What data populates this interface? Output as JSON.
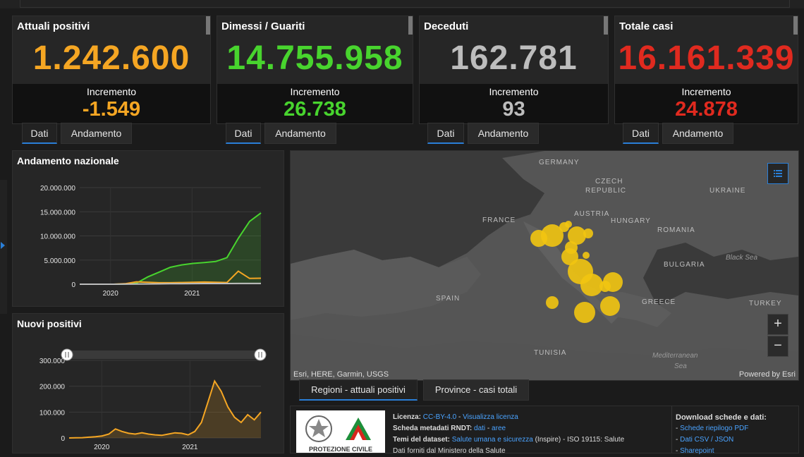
{
  "cards": [
    {
      "title": "Attuali positivi",
      "value": "1.242.600",
      "inc_label": "Incremento",
      "inc_value": "-1.549",
      "color": "#f5a623"
    },
    {
      "title": "Dimessi / Guariti",
      "value": "14.755.958",
      "inc_label": "Incremento",
      "inc_value": "26.738",
      "color": "#48d42e"
    },
    {
      "title": "Deceduti",
      "value": "162.781",
      "inc_label": "Incremento",
      "inc_value": "93",
      "color": "#bdbdbd"
    },
    {
      "title": "Totale casi",
      "value": "16.161.339",
      "inc_label": "Incremento",
      "inc_value": "24.878",
      "color": "#e02a1f"
    }
  ],
  "card_tabs": {
    "dati": "Dati",
    "andamento": "Andamento"
  },
  "panels": {
    "andamento_title": "Andamento nazionale",
    "nuovi_title": "Nuovi positivi"
  },
  "chart_data": [
    {
      "type": "line",
      "title": "Andamento nazionale",
      "x_ticks": [
        "2020",
        "2021"
      ],
      "y_ticks": [
        "20.000.000",
        "15.000.000",
        "10.000.000",
        "5.000.000",
        "0"
      ],
      "ylim": [
        0,
        20000000
      ],
      "series": [
        {
          "color": "#48d42e",
          "values": [
            0,
            0,
            0,
            0,
            50000,
            200000,
            1500000,
            2500000,
            3500000,
            4000000,
            4300000,
            4500000,
            4700000,
            5500000,
            9500000,
            13000000,
            14755958
          ]
        },
        {
          "color": "#f5a623",
          "values": [
            0,
            0,
            0,
            0,
            100000,
            500000,
            400000,
            300000,
            300000,
            350000,
            400000,
            450000,
            400000,
            350000,
            2700000,
            1200000,
            1242600
          ]
        },
        {
          "color": "#bdbdbd",
          "values": [
            0,
            0,
            0,
            0,
            10000,
            40000,
            60000,
            80000,
            100000,
            120000,
            130000,
            140000,
            145000,
            150000,
            155000,
            160000,
            162781
          ]
        }
      ]
    },
    {
      "type": "area",
      "title": "Nuovi positivi",
      "x_ticks": [
        "2020",
        "2021"
      ],
      "y_ticks": [
        "300.000",
        "200.000",
        "100.000",
        "0"
      ],
      "ylim": [
        0,
        300000
      ],
      "series": [
        {
          "color": "#f5a623",
          "values": [
            0,
            500,
            1000,
            3000,
            5000,
            8000,
            15000,
            35000,
            25000,
            18000,
            15000,
            20000,
            15000,
            12000,
            10000,
            15000,
            20000,
            18000,
            12000,
            25000,
            60000,
            140000,
            220000,
            180000,
            120000,
            80000,
            60000,
            90000,
            70000,
            100000
          ]
        }
      ]
    }
  ],
  "map": {
    "labels": {
      "germany": "GERMANY",
      "czech": "CZECH",
      "republic": "REPUBLIC",
      "ukraine": "UKRAINE",
      "france": "FRANCE",
      "austria": "AUSTRIA",
      "hungary": "HUNGARY",
      "romania": "ROMANIA",
      "black_sea": "Black Sea",
      "bulgaria": "BULGARIA",
      "spain": "SPAIN",
      "greece": "GREECE",
      "turkey": "TURKEY",
      "tunisia": "TUNISIA",
      "med_sea1": "Mediterranean",
      "med_sea2": "Sea"
    },
    "attribution": "Esri, HERE, Garmin, USGS",
    "powered": "Powered by Esri",
    "zoom_in": "+",
    "zoom_out": "−",
    "bubble_color": "#f2c511"
  },
  "bottom_tabs": {
    "regioni": "Regioni - attuali positivi",
    "province": "Province - casi totali"
  },
  "info": {
    "licenza_label": "Licenza:",
    "licenza_link1": "CC-BY-4.0",
    "sep1": " - ",
    "licenza_link2": "Visualizza licenza",
    "schede_label": "Scheda metadati RNDT:",
    "schede_link1": "dati",
    "sep2": " - ",
    "schede_link2": "aree",
    "temi_label": "Temi del dataset:",
    "temi_link": "Salute umana e sicurezza",
    "temi_rest": " (Inspire) - ISO 19115: Salute",
    "fonte_line": "Dati forniti dal Ministero della Salute",
    "download_title": "Download schede e dati:",
    "dl1": "Schede riepilogo PDF",
    "dl2": "Dati CSV / JSON",
    "dl3": "Sharepoint",
    "logo_text": "PROTEZIONE CIVILE"
  }
}
